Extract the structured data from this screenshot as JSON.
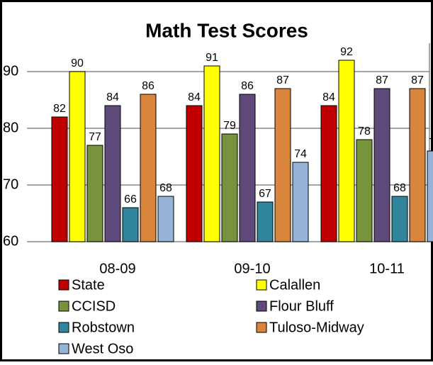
{
  "chart_data": {
    "type": "bar",
    "title": "Math Test Scores",
    "categories": [
      "08-09",
      "09-10",
      "10-11"
    ],
    "series": [
      {
        "name": "State",
        "color": "#c00000",
        "values": [
          82,
          84,
          84
        ]
      },
      {
        "name": "Calallen",
        "color": "#ffff00",
        "values": [
          90,
          91,
          92
        ]
      },
      {
        "name": "CCISD",
        "color": "#77933c",
        "values": [
          77,
          79,
          78
        ]
      },
      {
        "name": "Flour Bluff",
        "color": "#604a7b",
        "values": [
          84,
          86,
          87
        ]
      },
      {
        "name": "Robstown",
        "color": "#31859c",
        "values": [
          66,
          67,
          68
        ]
      },
      {
        "name": "Tuloso-Midway",
        "color": "#d9853b",
        "values": [
          86,
          87,
          87
        ]
      },
      {
        "name": "West Oso",
        "color": "#95b3d7",
        "values": [
          68,
          74,
          76
        ]
      }
    ],
    "ylim": [
      60,
      95
    ],
    "yticks": [
      60,
      70,
      80,
      90
    ],
    "grid": true,
    "legend": "bottom"
  }
}
